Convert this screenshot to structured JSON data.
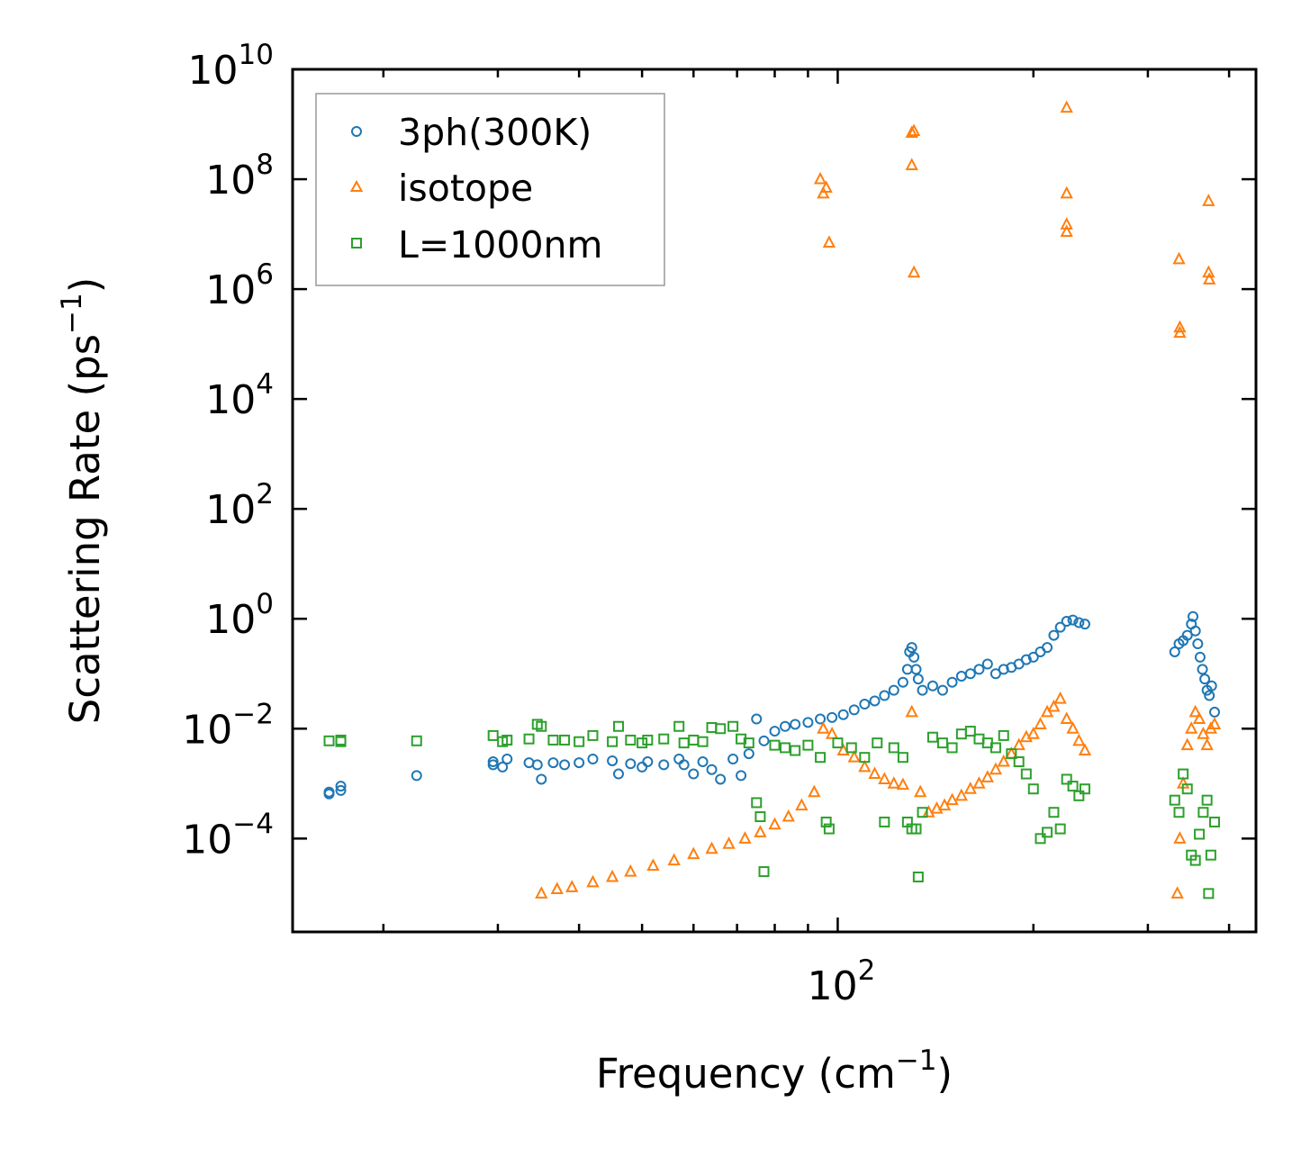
{
  "chart_data": {
    "type": "scatter",
    "title": "",
    "xlabel": "Frequency (cm",
    "xlabel_sup": "−1",
    "xlabel_end": ")",
    "ylabel": "Scattering Rate (ps",
    "ylabel_sup": "−1",
    "ylabel_end": ")",
    "xscale": "log",
    "yscale": "log",
    "xlim": [
      14.5,
      440
    ],
    "ylim": [
      2e-06,
      10000000000.0
    ],
    "xticks": [
      {
        "base": "10",
        "exp": "2",
        "value": 100
      }
    ],
    "yticks": [
      {
        "base": "10",
        "exp": "10",
        "value": 10000000000.0
      },
      {
        "base": "10",
        "exp": "8",
        "value": 100000000.0
      },
      {
        "base": "10",
        "exp": "6",
        "value": 1000000.0
      },
      {
        "base": "10",
        "exp": "4",
        "value": 10000.0
      },
      {
        "base": "10",
        "exp": "2",
        "value": 100
      },
      {
        "base": "10",
        "exp": "0",
        "value": 1
      },
      {
        "base": "10",
        "exp": "−2",
        "value": 0.01
      },
      {
        "base": "10",
        "exp": "−4",
        "value": 0.0001
      }
    ],
    "legend_position": "upper-left",
    "series": [
      {
        "name": "3ph(300K)",
        "color": "#1f77b4",
        "marker": "circle",
        "points": [
          [
            16.5,
            0.0007
          ],
          [
            16.5,
            0.00065
          ],
          [
            17.2,
            0.0009
          ],
          [
            17.2,
            0.00075
          ],
          [
            22.5,
            0.0014
          ],
          [
            29.5,
            0.0025
          ],
          [
            29.5,
            0.0022
          ],
          [
            30.5,
            0.002
          ],
          [
            31,
            0.0028
          ],
          [
            33.5,
            0.0024
          ],
          [
            34.5,
            0.0022
          ],
          [
            35,
            0.0012
          ],
          [
            36.5,
            0.0024
          ],
          [
            38,
            0.0022
          ],
          [
            40,
            0.0024
          ],
          [
            42,
            0.0028
          ],
          [
            45,
            0.0026
          ],
          [
            46,
            0.0015
          ],
          [
            48,
            0.0023
          ],
          [
            50,
            0.002
          ],
          [
            51,
            0.0025
          ],
          [
            54,
            0.0022
          ],
          [
            57,
            0.0028
          ],
          [
            58,
            0.0022
          ],
          [
            60,
            0.0015
          ],
          [
            62,
            0.0025
          ],
          [
            64,
            0.0018
          ],
          [
            66,
            0.0012
          ],
          [
            69,
            0.0028
          ],
          [
            71,
            0.0014
          ],
          [
            73,
            0.0035
          ],
          [
            75,
            0.015
          ],
          [
            77,
            0.006
          ],
          [
            80,
            0.009
          ],
          [
            83,
            0.011
          ],
          [
            86,
            0.012
          ],
          [
            90,
            0.013
          ],
          [
            94,
            0.015
          ],
          [
            98,
            0.016
          ],
          [
            102,
            0.018
          ],
          [
            106,
            0.022
          ],
          [
            110,
            0.028
          ],
          [
            114,
            0.032
          ],
          [
            118,
            0.04
          ],
          [
            122,
            0.05
          ],
          [
            126,
            0.07
          ],
          [
            128,
            0.12
          ],
          [
            129,
            0.25
          ],
          [
            130,
            0.3
          ],
          [
            131,
            0.2
          ],
          [
            132,
            0.12
          ],
          [
            133,
            0.08
          ],
          [
            135,
            0.05
          ],
          [
            140,
            0.06
          ],
          [
            145,
            0.05
          ],
          [
            150,
            0.07
          ],
          [
            155,
            0.09
          ],
          [
            160,
            0.1
          ],
          [
            165,
            0.12
          ],
          [
            170,
            0.15
          ],
          [
            175,
            0.1
          ],
          [
            180,
            0.12
          ],
          [
            185,
            0.13
          ],
          [
            190,
            0.15
          ],
          [
            195,
            0.18
          ],
          [
            200,
            0.2
          ],
          [
            205,
            0.25
          ],
          [
            210,
            0.3
          ],
          [
            215,
            0.5
          ],
          [
            220,
            0.7
          ],
          [
            225,
            0.9
          ],
          [
            230,
            0.95
          ],
          [
            235,
            0.85
          ],
          [
            240,
            0.8
          ],
          [
            330,
            0.25
          ],
          [
            335,
            0.35
          ],
          [
            340,
            0.4
          ],
          [
            345,
            0.5
          ],
          [
            350,
            0.8
          ],
          [
            352,
            1.1
          ],
          [
            355,
            0.6
          ],
          [
            358,
            0.35
          ],
          [
            361,
            0.2
          ],
          [
            364,
            0.12
          ],
          [
            367,
            0.08
          ],
          [
            370,
            0.05
          ],
          [
            373,
            0.04
          ],
          [
            376,
            0.06
          ],
          [
            380,
            0.02
          ]
        ]
      },
      {
        "name": "isotope",
        "color": "#ff7f0e",
        "marker": "triangle",
        "points": [
          [
            35,
            1e-05
          ],
          [
            37,
            1.2e-05
          ],
          [
            39,
            1.3e-05
          ],
          [
            42,
            1.6e-05
          ],
          [
            45,
            2e-05
          ],
          [
            48,
            2.5e-05
          ],
          [
            52,
            3.2e-05
          ],
          [
            56,
            4e-05
          ],
          [
            60,
            5.2e-05
          ],
          [
            64,
            6.5e-05
          ],
          [
            68,
            8e-05
          ],
          [
            72,
            0.0001
          ],
          [
            76,
            0.00013
          ],
          [
            80,
            0.00018
          ],
          [
            84,
            0.00025
          ],
          [
            88,
            0.0004
          ],
          [
            92,
            0.0007
          ],
          [
            95,
            0.01
          ],
          [
            98,
            0.008
          ],
          [
            102,
            0.004
          ],
          [
            106,
            0.003
          ],
          [
            110,
            0.002
          ],
          [
            114,
            0.0015
          ],
          [
            118,
            0.0012
          ],
          [
            122,
            0.001
          ],
          [
            126,
            0.00095
          ],
          [
            130,
            0.02
          ],
          [
            134,
            0.0007
          ],
          [
            138,
            0.0003
          ],
          [
            142,
            0.00035
          ],
          [
            146,
            0.0004
          ],
          [
            150,
            0.0005
          ],
          [
            155,
            0.0006
          ],
          [
            160,
            0.0008
          ],
          [
            165,
            0.001
          ],
          [
            170,
            0.0013
          ],
          [
            175,
            0.0018
          ],
          [
            180,
            0.0025
          ],
          [
            185,
            0.0035
          ],
          [
            190,
            0.005
          ],
          [
            195,
            0.007
          ],
          [
            200,
            0.008
          ],
          [
            205,
            0.012
          ],
          [
            210,
            0.02
          ],
          [
            215,
            0.025
          ],
          [
            220,
            0.035
          ],
          [
            225,
            0.015
          ],
          [
            230,
            0.01
          ],
          [
            235,
            0.006
          ],
          [
            240,
            0.004
          ],
          [
            333,
            1e-05
          ],
          [
            336,
            0.0001
          ],
          [
            340,
            0.001
          ],
          [
            345,
            0.005
          ],
          [
            350,
            0.01
          ],
          [
            355,
            0.02
          ],
          [
            360,
            0.015
          ],
          [
            365,
            0.008
          ],
          [
            370,
            0.005
          ],
          [
            375,
            0.01
          ],
          [
            380,
            0.012
          ],
          [
            94,
            100000000.0
          ],
          [
            95,
            55000000.0
          ],
          [
            96,
            70000000.0
          ],
          [
            97,
            7000000.0
          ],
          [
            130,
            700000000.0
          ],
          [
            131,
            750000000.0
          ],
          [
            130,
            180000000.0
          ],
          [
            131,
            2000000.0
          ],
          [
            225,
            2000000000.0
          ],
          [
            225,
            55000000.0
          ],
          [
            225,
            15000000.0
          ],
          [
            225,
            11000000.0
          ],
          [
            335,
            3500000.0
          ],
          [
            336,
            200000.0
          ],
          [
            336,
            160000.0
          ],
          [
            372,
            40000000.0
          ],
          [
            372,
            2000000.0
          ],
          [
            373,
            1500000.0
          ]
        ]
      },
      {
        "name": "L=1000nm",
        "color": "#2ca02c",
        "marker": "square",
        "points": [
          [
            16.5,
            0.006
          ],
          [
            17.2,
            0.0058
          ],
          [
            17.2,
            0.0062
          ],
          [
            22.5,
            0.006
          ],
          [
            29.5,
            0.0075
          ],
          [
            30.5,
            0.0058
          ],
          [
            31,
            0.0062
          ],
          [
            33.5,
            0.0065
          ],
          [
            34.5,
            0.012
          ],
          [
            35,
            0.011
          ],
          [
            36.5,
            0.0062
          ],
          [
            38,
            0.0062
          ],
          [
            40,
            0.0058
          ],
          [
            42,
            0.0075
          ],
          [
            45,
            0.0058
          ],
          [
            46,
            0.011
          ],
          [
            48,
            0.0062
          ],
          [
            50,
            0.0055
          ],
          [
            51,
            0.0062
          ],
          [
            54,
            0.0065
          ],
          [
            57,
            0.011
          ],
          [
            58,
            0.0055
          ],
          [
            60,
            0.0062
          ],
          [
            62,
            0.0058
          ],
          [
            64,
            0.0105
          ],
          [
            66,
            0.01
          ],
          [
            69,
            0.011
          ],
          [
            71,
            0.0065
          ],
          [
            73,
            0.0055
          ],
          [
            75,
            0.00045
          ],
          [
            76,
            0.00025
          ],
          [
            77,
            2.5e-05
          ],
          [
            80,
            0.005
          ],
          [
            83,
            0.0045
          ],
          [
            86,
            0.004
          ],
          [
            90,
            0.005
          ],
          [
            94,
            0.003
          ],
          [
            96,
            0.0002
          ],
          [
            97,
            0.00015
          ],
          [
            100,
            0.0055
          ],
          [
            105,
            0.0045
          ],
          [
            110,
            0.003
          ],
          [
            115,
            0.0055
          ],
          [
            118,
            0.0002
          ],
          [
            122,
            0.0045
          ],
          [
            126,
            0.003
          ],
          [
            128,
            0.0002
          ],
          [
            130,
            0.00015
          ],
          [
            132,
            0.00015
          ],
          [
            133,
            2e-05
          ],
          [
            135,
            0.0003
          ],
          [
            140,
            0.007
          ],
          [
            145,
            0.0055
          ],
          [
            150,
            0.0045
          ],
          [
            155,
            0.008
          ],
          [
            160,
            0.009
          ],
          [
            165,
            0.0065
          ],
          [
            170,
            0.0055
          ],
          [
            175,
            0.0045
          ],
          [
            180,
            0.0075
          ],
          [
            185,
            0.0035
          ],
          [
            190,
            0.0025
          ],
          [
            195,
            0.0015
          ],
          [
            200,
            0.0008
          ],
          [
            205,
            0.0001
          ],
          [
            210,
            0.00013
          ],
          [
            215,
            0.0003
          ],
          [
            220,
            0.00015
          ],
          [
            225,
            0.0012
          ],
          [
            230,
            0.0009
          ],
          [
            235,
            0.0006
          ],
          [
            240,
            0.0008
          ],
          [
            330,
            0.0005
          ],
          [
            335,
            0.0003
          ],
          [
            340,
            0.0015
          ],
          [
            345,
            0.0008
          ],
          [
            350,
            5e-05
          ],
          [
            355,
            4e-05
          ],
          [
            360,
            0.00012
          ],
          [
            365,
            0.0003
          ],
          [
            370,
            0.0005
          ],
          [
            372,
            1e-05
          ],
          [
            375,
            5e-05
          ],
          [
            380,
            0.0002
          ]
        ]
      }
    ]
  }
}
